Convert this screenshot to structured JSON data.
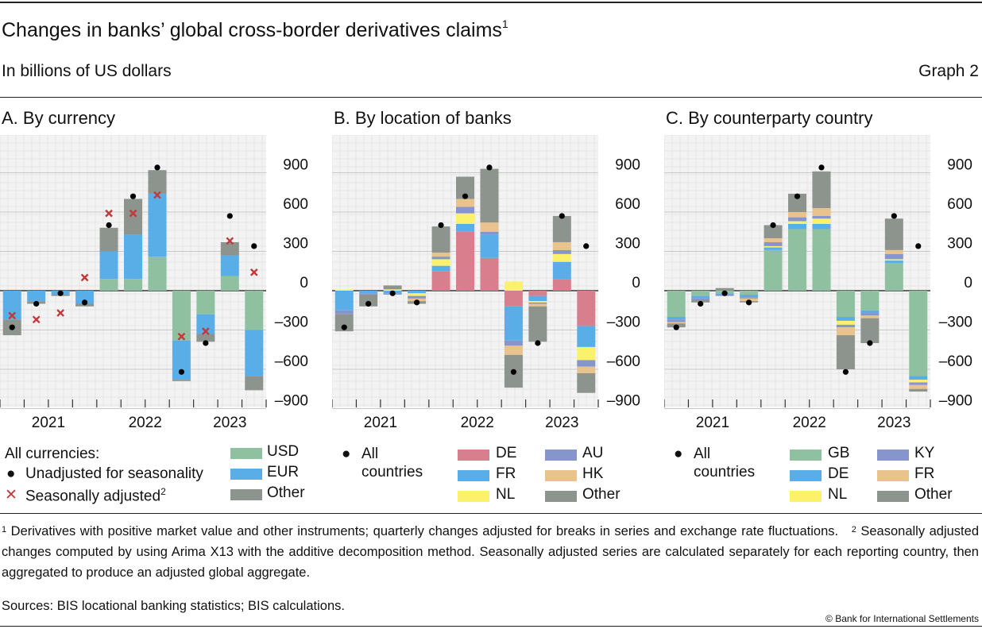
{
  "header": {
    "title": "Changes in banks’ global cross-border derivatives claims",
    "title_note": "1",
    "subtitle": "In billions of US dollars",
    "graph_label": "Graph 2"
  },
  "chart_data": [
    {
      "type": "bar",
      "title": "A. By currency",
      "stacked": true,
      "x": [
        "2021Q1",
        "2021Q2",
        "2021Q3",
        "2021Q4",
        "2022Q1",
        "2022Q2",
        "2022Q3",
        "2022Q4",
        "2023Q1",
        "2023Q2",
        "2023Q3"
      ],
      "year_labels": [
        "2021",
        "2022",
        "2023"
      ],
      "yticks": [
        900,
        600,
        300,
        0,
        -300,
        -600,
        -900
      ],
      "ytick_labels": [
        "900",
        "600",
        "300",
        "0",
        "–300",
        "–600",
        "–900"
      ],
      "ylim": [
        -900,
        1100
      ],
      "grid": true,
      "series": [
        {
          "name": "USD",
          "color": "#8fc1a0",
          "values": [
            0,
            0,
            0,
            0,
            90,
            90,
            260,
            -380,
            -180,
            110,
            -300
          ]
        },
        {
          "name": "EUR",
          "color": "#5aaee8",
          "values": [
            -220,
            -80,
            -30,
            -100,
            210,
            340,
            480,
            -300,
            -150,
            160,
            -350
          ]
        },
        {
          "name": "Other",
          "color": "#8d938d",
          "values": [
            -120,
            -20,
            -10,
            -20,
            180,
            270,
            180,
            -10,
            -60,
            100,
            -110
          ]
        }
      ],
      "markers": [
        {
          "name": "Unadjusted for seasonality",
          "shape": "dot",
          "color": "#000000",
          "values": [
            -280,
            -100,
            -20,
            -90,
            500,
            720,
            940,
            -620,
            -400,
            570,
            340
          ]
        },
        {
          "name": "Seasonally adjusted",
          "shape": "cross",
          "color": "#c0393b",
          "values": [
            -190,
            -220,
            -170,
            100,
            590,
            590,
            730,
            -350,
            -310,
            380,
            140
          ]
        }
      ],
      "legend": {
        "heading": "All currencies:",
        "dot_label": "Unadjusted for seasonality",
        "cross_label": "Seasonally adjusted",
        "cross_note": "2",
        "series_labels": [
          "USD",
          "EUR",
          "Other"
        ]
      }
    },
    {
      "type": "bar",
      "title": "B. By location of banks",
      "stacked": true,
      "x": [
        "2021Q1",
        "2021Q2",
        "2021Q3",
        "2021Q4",
        "2022Q1",
        "2022Q2",
        "2022Q3",
        "2022Q4",
        "2023Q1",
        "2023Q2",
        "2023Q3"
      ],
      "year_labels": [
        "2021",
        "2022",
        "2023"
      ],
      "yticks": [
        900,
        600,
        300,
        0,
        -300,
        -600,
        -900
      ],
      "ytick_labels": [
        "900",
        "600",
        "300",
        "0",
        "–300",
        "–600",
        "–900"
      ],
      "ylim": [
        -900,
        1100
      ],
      "grid": true,
      "series": [
        {
          "name": "DE",
          "color": "#d87f8e",
          "values": [
            0,
            0,
            0,
            0,
            150,
            450,
            250,
            -120,
            -40,
            90,
            -270
          ]
        },
        {
          "name": "FR",
          "color": "#5aaee8",
          "values": [
            -150,
            -20,
            -20,
            -20,
            40,
            60,
            180,
            -260,
            -40,
            130,
            -160
          ]
        },
        {
          "name": "NL",
          "color": "#fcf16b",
          "values": [
            10,
            0,
            10,
            -20,
            50,
            80,
            0,
            70,
            -10,
            60,
            -100
          ]
        },
        {
          "name": "AU",
          "color": "#8696cc",
          "values": [
            -30,
            -10,
            -10,
            -20,
            20,
            50,
            20,
            -40,
            -10,
            30,
            -50
          ]
        },
        {
          "name": "HK",
          "color": "#e9c38e",
          "values": [
            0,
            0,
            0,
            -20,
            30,
            60,
            70,
            -70,
            -20,
            60,
            -50
          ]
        },
        {
          "name": "Other",
          "color": "#8d938d",
          "values": [
            -130,
            -90,
            30,
            -20,
            200,
            170,
            410,
            -250,
            -270,
            200,
            -150
          ]
        }
      ],
      "markers": [
        {
          "name": "All countries",
          "shape": "dot",
          "color": "#000000",
          "values": [
            -280,
            -100,
            -20,
            -90,
            500,
            720,
            940,
            -620,
            -400,
            570,
            340
          ]
        }
      ],
      "legend": {
        "dot_label_line1": "All",
        "dot_label_line2": "countries",
        "series_labels": [
          "DE",
          "AU",
          "FR",
          "HK",
          "NL",
          "Other"
        ]
      }
    },
    {
      "type": "bar",
      "title": "C. By counterparty country",
      "stacked": true,
      "x": [
        "2021Q1",
        "2021Q2",
        "2021Q3",
        "2021Q4",
        "2022Q1",
        "2022Q2",
        "2022Q3",
        "2022Q4",
        "2023Q1",
        "2023Q2",
        "2023Q3"
      ],
      "year_labels": [
        "2021",
        "2022",
        "2023"
      ],
      "yticks": [
        900,
        600,
        300,
        0,
        -300,
        -600,
        -900
      ],
      "ytick_labels": [
        "900",
        "600",
        "300",
        "0",
        "–300",
        "–600",
        "–900"
      ],
      "ylim": [
        -900,
        1100
      ],
      "grid": true,
      "series": [
        {
          "name": "GB",
          "color": "#8fc1a0",
          "values": [
            -200,
            -40,
            -20,
            -30,
            310,
            470,
            470,
            -200,
            -150,
            210,
            -650
          ]
        },
        {
          "name": "DE",
          "color": "#5aaee8",
          "values": [
            -20,
            -20,
            -10,
            -20,
            20,
            40,
            40,
            -30,
            -20,
            20,
            -30
          ]
        },
        {
          "name": "NL",
          "color": "#fcf16b",
          "values": [
            0,
            0,
            0,
            0,
            10,
            20,
            40,
            -30,
            0,
            10,
            -20
          ]
        },
        {
          "name": "KY",
          "color": "#8696cc",
          "values": [
            -20,
            -10,
            -10,
            -10,
            30,
            30,
            20,
            -20,
            -20,
            40,
            -20
          ]
        },
        {
          "name": "FR",
          "color": "#e9c38e",
          "values": [
            -10,
            0,
            0,
            -20,
            30,
            40,
            60,
            -60,
            -20,
            30,
            -30
          ]
        },
        {
          "name": "Other",
          "color": "#8d938d",
          "values": [
            -30,
            -20,
            20,
            -10,
            100,
            140,
            280,
            -260,
            -190,
            240,
            -20
          ]
        }
      ],
      "markers": [
        {
          "name": "All countries",
          "shape": "dot",
          "color": "#000000",
          "values": [
            -280,
            -100,
            -20,
            -90,
            500,
            720,
            940,
            -620,
            -400,
            570,
            340
          ]
        }
      ],
      "legend": {
        "dot_label_line1": "All",
        "dot_label_line2": "countries",
        "series_labels": [
          "GB",
          "KY",
          "DE",
          "FR",
          "NL",
          "Other"
        ]
      }
    }
  ],
  "footnotes": {
    "note1_mark": "1",
    "note1": "Derivatives with positive market value and other instruments; quarterly changes adjusted for breaks in series and exchange rate fluctuations.",
    "note2_mark": "2",
    "note2": "Seasonally adjusted changes computed by using Arima X13 with the additive decomposition method. Seasonally adjusted series are calculated separately for each reporting country, then aggregated to produce an adjusted global aggregate.",
    "sources": "Sources: BIS locational banking statistics; BIS calculations.",
    "copyright": "© Bank for International Settlements"
  }
}
